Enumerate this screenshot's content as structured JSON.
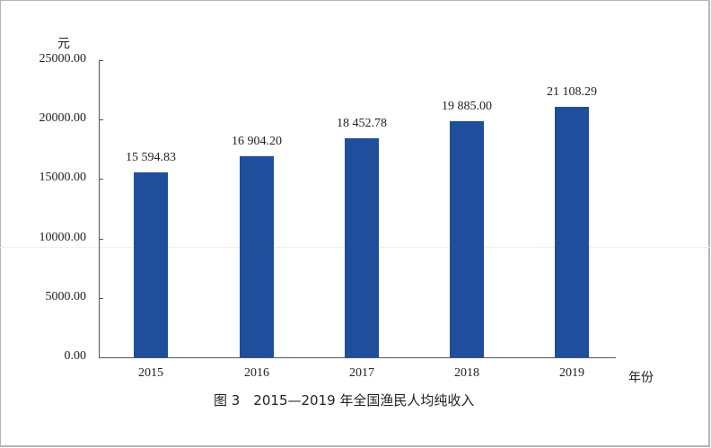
{
  "chart_data": {
    "type": "bar",
    "title": "图 3　2015—2019 年全国渔民人均纯收入",
    "xlabel": "年份",
    "ylabel": "元",
    "categories": [
      "2015",
      "2016",
      "2017",
      "2018",
      "2019"
    ],
    "values": [
      15594.83,
      16904.2,
      18452.78,
      19885.0,
      21108.29
    ],
    "value_labels": [
      "15 594.83",
      "16 904.20",
      "18 452.78",
      "19 885.00",
      "21 108.29"
    ],
    "yticks": [
      "0.00",
      "5000.00",
      "10000.00",
      "15000.00",
      "20000.00",
      "25000.00"
    ],
    "ylim": [
      0,
      25000
    ],
    "grid": false,
    "legend": null,
    "bar_color": "#1f4e9c"
  },
  "labels": {
    "unit": "元",
    "x_name": "年份",
    "caption": "图 3　2015—2019 年全国渔民人均纯收入"
  }
}
